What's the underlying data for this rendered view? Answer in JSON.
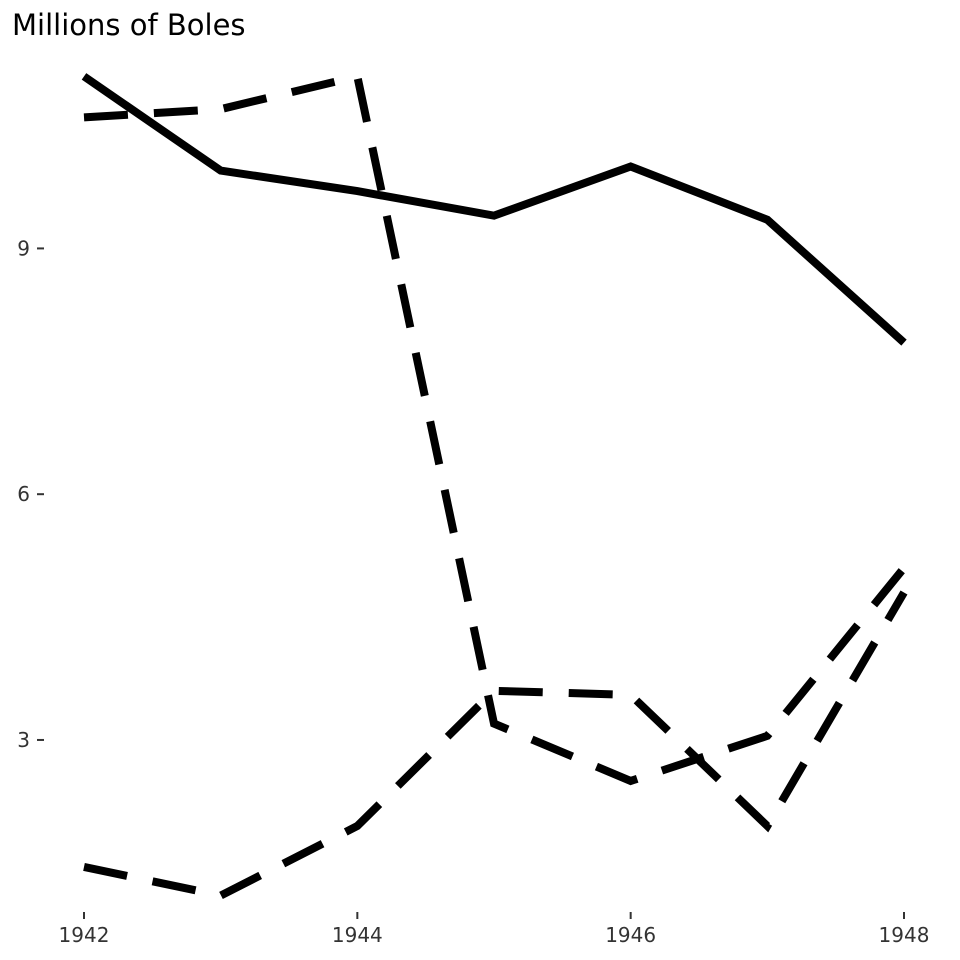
{
  "chart_data": {
    "type": "line",
    "title": "Millions of Boles",
    "xlabel": "",
    "ylabel": "",
    "x": [
      1942,
      1943,
      1944,
      1945,
      1946,
      1947,
      1948
    ],
    "xticks": [
      "1942",
      "1944",
      "1946",
      "1948"
    ],
    "yticks": [
      "3",
      "6",
      "9"
    ],
    "xlim": [
      1942,
      1948
    ],
    "ylim": [
      0.9,
      11.3
    ],
    "grid": false,
    "legend": "none",
    "series": [
      {
        "style": "solid",
        "color": "#000000",
        "values": [
          11.1,
          9.95,
          9.7,
          9.4,
          10.0,
          9.35,
          7.85
        ]
      },
      {
        "style": "dashed",
        "color": "#000000",
        "values": [
          10.6,
          10.7,
          11.1,
          3.2,
          2.5,
          3.05,
          5.1
        ]
      },
      {
        "style": "dashed",
        "color": "#000000",
        "values": [
          1.45,
          1.1,
          1.95,
          3.6,
          3.55,
          1.95,
          4.8
        ]
      }
    ]
  }
}
